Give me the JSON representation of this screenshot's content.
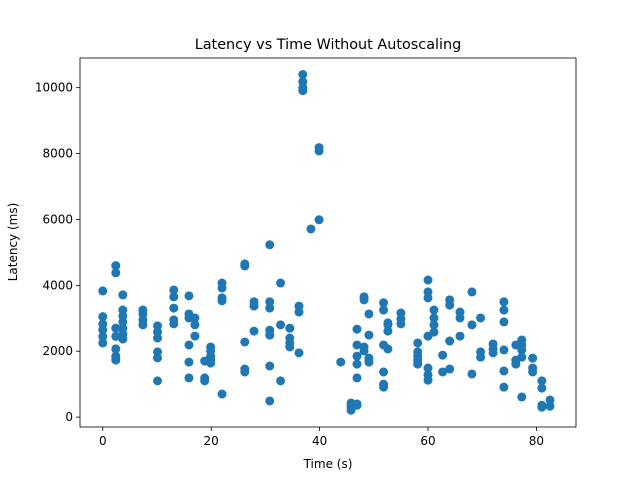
{
  "chart_data": {
    "type": "scatter",
    "title": "Latency vs Time Without Autoscaling",
    "x_label": "Time (s)",
    "y_label": "Latency (ms)",
    "color": "#1f77b4",
    "xlim": [
      -4.2,
      87.3
    ],
    "ylim": [
      -300,
      10900
    ],
    "xticks": [
      0,
      20,
      40,
      60,
      80
    ],
    "yticks": [
      0,
      2000,
      4000,
      6000,
      8000,
      10000
    ],
    "x": [
      0,
      0,
      0,
      0,
      0,
      0,
      2.4,
      2.4,
      2.4,
      2.4,
      2.4,
      2.4,
      2.4,
      3.7,
      3.7,
      3.7,
      3.7,
      3.7,
      3.7,
      3.7,
      7.4,
      7.4,
      7.4,
      7.4,
      10.1,
      10.1,
      10.1,
      10.1,
      10.1,
      10.1,
      13.1,
      13.1,
      13.1,
      13.1,
      13.1,
      15.9,
      15.9,
      15.9,
      15.9,
      15.9,
      15.9,
      17,
      17,
      17,
      18.8,
      18.8,
      18.8,
      19.9,
      19.9,
      19.9,
      19.9,
      19.9,
      22,
      22,
      22,
      22,
      22,
      26.2,
      26.2,
      26.2,
      26.2,
      26.2,
      27.9,
      27.9,
      27.9,
      30.8,
      30.8,
      30.8,
      30.8,
      30.8,
      30.8,
      30.8,
      32.8,
      32.8,
      32.8,
      34.5,
      34.5,
      34.5,
      34.5,
      36.2,
      36.2,
      36.2,
      36.9,
      36.9,
      36.9,
      36.9,
      38.4,
      39.9,
      39.9,
      39.9,
      43.9,
      45.8,
      45.8,
      45.8,
      46.9,
      46.9,
      46.9,
      46.9,
      46.9,
      46.9,
      46.9,
      48.2,
      48.2,
      48.2,
      48.2,
      49.1,
      49.1,
      49.1,
      49.1,
      51.8,
      51.8,
      51.8,
      51.8,
      51.8,
      51.8,
      52.6,
      52.6,
      52.6,
      52.6,
      55,
      55,
      55,
      58.1,
      58.1,
      58.1,
      58.1,
      58.1,
      60,
      60,
      60,
      60,
      60,
      60,
      60,
      61.1,
      61.1,
      61.1,
      61.1,
      62.7,
      62.7,
      64,
      64,
      64,
      64,
      65.9,
      65.9,
      65.9,
      68.1,
      68.1,
      68.1,
      69.7,
      69.7,
      69.7,
      72,
      72,
      72,
      74,
      74,
      74,
      74,
      74,
      74,
      76.2,
      76.2,
      76.2,
      77.3,
      77.3,
      77.3,
      77.3,
      77.3,
      79.3,
      79.3,
      79.3,
      81,
      81,
      81,
      81,
      82.5,
      82.5
    ],
    "values": [
      3830,
      3050,
      2830,
      2650,
      2450,
      2250,
      4600,
      4380,
      2700,
      2450,
      2070,
      1850,
      1730,
      3710,
      3250,
      3070,
      2890,
      2700,
      2520,
      2370,
      3250,
      3130,
      2950,
      2800,
      2770,
      2580,
      2400,
      1980,
      1800,
      1100,
      3860,
      3650,
      3310,
      2950,
      2830,
      3680,
      3130,
      3010,
      2190,
      1670,
      1190,
      3010,
      2800,
      2460,
      1700,
      1190,
      1100,
      2130,
      2010,
      1850,
      1730,
      1640,
      4070,
      3920,
      3620,
      3530,
      700,
      4650,
      4590,
      2280,
      1460,
      1370,
      3500,
      3370,
      2610,
      5230,
      3500,
      3310,
      2640,
      2490,
      1550,
      490,
      4070,
      2800,
      1100,
      2700,
      2400,
      2250,
      2130,
      3370,
      3190,
      1950,
      10400,
      10180,
      10000,
      9910,
      5710,
      8180,
      8080,
      5990,
      1670,
      210,
      330,
      430,
      360,
      400,
      1190,
      1610,
      1850,
      2190,
      2670,
      3650,
      3560,
      2130,
      2010,
      2490,
      1790,
      1670,
      3130,
      3470,
      3250,
      2190,
      1370,
      1000,
      910,
      2860,
      2610,
      2800,
      2070,
      3160,
      2980,
      2830,
      2250,
      1980,
      1850,
      1730,
      1610,
      4160,
      3800,
      3620,
      2460,
      1490,
      1280,
      1120,
      3250,
      3010,
      2800,
      2580,
      1880,
      1370,
      3560,
      3400,
      2310,
      1460,
      3190,
      3010,
      2460,
      3800,
      2800,
      1310,
      3010,
      1980,
      1820,
      2220,
      2070,
      1950,
      3500,
      3250,
      2890,
      2040,
      1400,
      910,
      2190,
      1730,
      1610,
      2340,
      2190,
      2040,
      1820,
      610,
      1790,
      1490,
      1370,
      1100,
      880,
      360,
      300,
      520,
      330
    ]
  }
}
